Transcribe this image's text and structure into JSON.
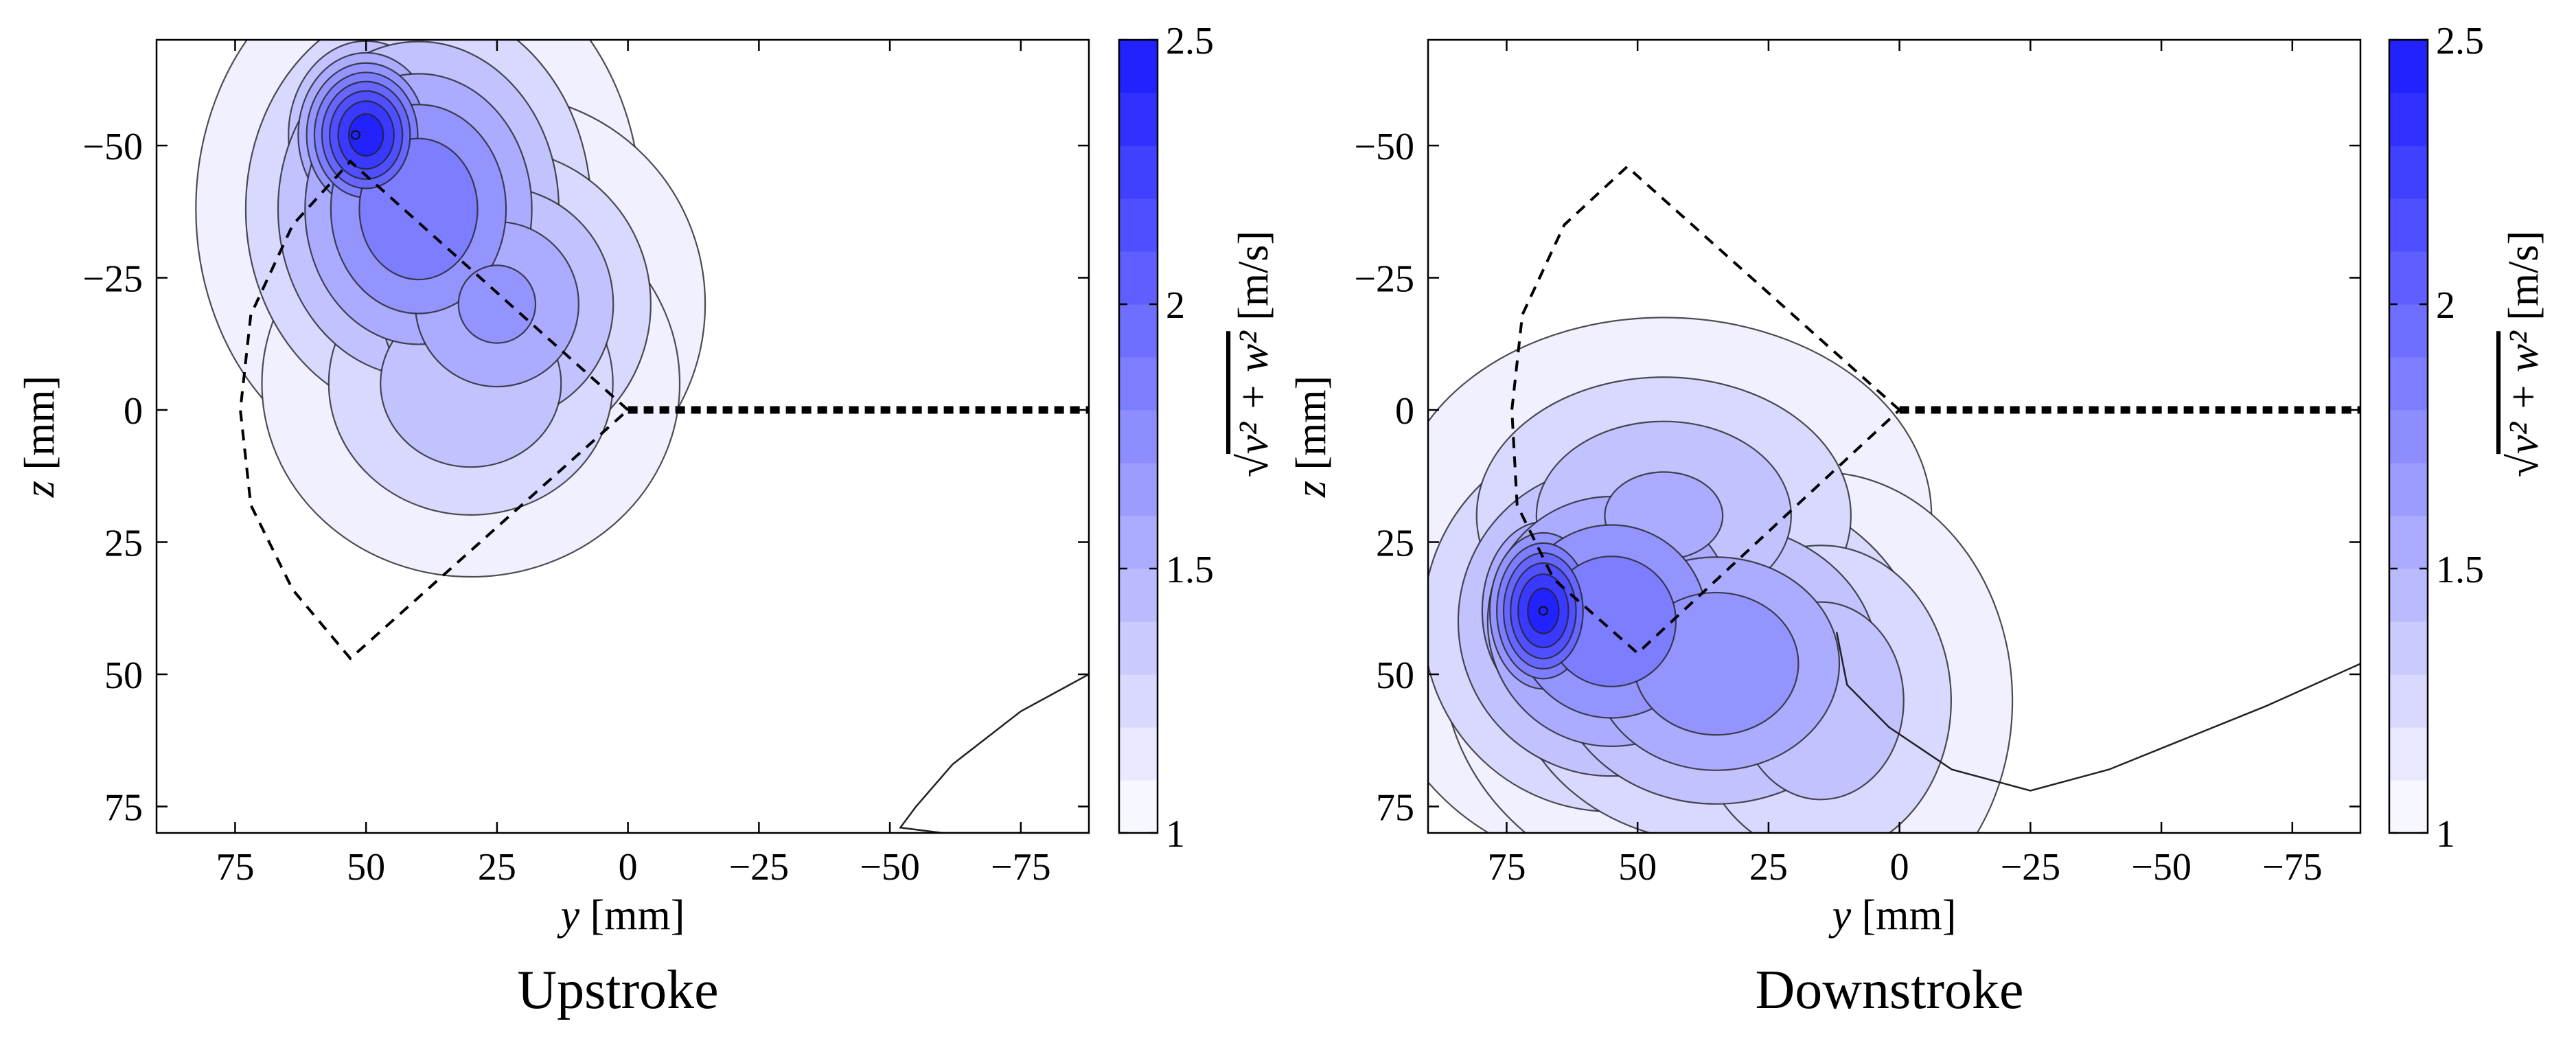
{
  "figure": {
    "colormap_low": "#ffffff",
    "colormap_high": "#1a1aff"
  },
  "chart_data": [
    {
      "type": "heatmap",
      "title": "",
      "caption": "Upstroke",
      "xlabel_var": "y",
      "xlabel_unit": " [mm]",
      "ylabel_var": "z",
      "ylabel_unit": " [mm]",
      "xlim": [
        90,
        -88
      ],
      "ylim": [
        -70,
        80
      ],
      "xticks": [
        75,
        50,
        25,
        0,
        -25,
        -50,
        -75
      ],
      "xtick_labels": [
        "75",
        "50",
        "25",
        "0",
        "−25",
        "−50",
        "−75"
      ],
      "yticks": [
        -50,
        -25,
        0,
        25,
        50,
        75
      ],
      "ytick_labels": [
        "−50",
        "−25",
        "0",
        "25",
        "50",
        "75"
      ],
      "colorbar": {
        "label_prefix": "√",
        "label_expr": "v² + w²",
        "label_unit": " [m/s]",
        "range": [
          1,
          2.5
        ],
        "ticks": [
          1,
          1.5,
          2,
          2.5
        ],
        "tick_labels": [
          "1",
          "1.5",
          "2",
          "2.5"
        ],
        "levels": 15
      },
      "levels": [
        1.1,
        1.25,
        1.4,
        1.55,
        1.7,
        1.85,
        2.0,
        2.15,
        2.3,
        2.45
      ],
      "peak": {
        "y": 52,
        "z": -52,
        "value": 2.5
      },
      "wing_outline": {
        "arc_points": [
          [
            53,
            -47
          ],
          [
            64,
            -35
          ],
          [
            72,
            -18
          ],
          [
            74,
            0
          ],
          [
            72,
            18
          ],
          [
            64,
            34
          ],
          [
            53,
            47
          ]
        ],
        "root": [
          0,
          0
        ]
      },
      "wing_trail": {
        "from_y": 0,
        "to_y": -88,
        "z": 0
      },
      "isolated_contour": [
        [
          -88,
          50
        ],
        [
          -75,
          57
        ],
        [
          -62,
          67
        ],
        [
          -55,
          75
        ],
        [
          -52,
          79
        ],
        [
          -60,
          80
        ],
        [
          -75,
          80
        ],
        [
          -88,
          80
        ]
      ]
    },
    {
      "type": "heatmap",
      "title": "",
      "caption": "Downstroke",
      "xlabel_var": "y",
      "xlabel_unit": " [mm]",
      "ylabel_var": "z",
      "ylabel_unit": " [mm]",
      "xlim": [
        90,
        -88
      ],
      "ylim": [
        -70,
        80
      ],
      "xticks": [
        75,
        50,
        25,
        0,
        -25,
        -50,
        -75
      ],
      "xtick_labels": [
        "75",
        "50",
        "25",
        "0",
        "−25",
        "−50",
        "−75"
      ],
      "yticks": [
        -50,
        -25,
        0,
        25,
        50,
        75
      ],
      "ytick_labels": [
        "−50",
        "−25",
        "0",
        "25",
        "50",
        "75"
      ],
      "colorbar": {
        "label_prefix": "√",
        "label_expr": "v² + w²",
        "label_unit": " [m/s]",
        "range": [
          1,
          2.5
        ],
        "ticks": [
          1,
          1.5,
          2,
          2.5
        ],
        "tick_labels": [
          "1",
          "1.5",
          "2",
          "2.5"
        ],
        "levels": 15
      },
      "levels": [
        1.1,
        1.25,
        1.4,
        1.55,
        1.7,
        1.85,
        2.0,
        2.15,
        2.3,
        2.45
      ],
      "peak": {
        "y": 68,
        "z": 38,
        "value": 2.5
      },
      "wing_outline": {
        "arc_points": [
          [
            52,
            -46
          ],
          [
            64,
            -35
          ],
          [
            72,
            -18
          ],
          [
            74,
            0
          ],
          [
            73,
            18
          ],
          [
            66,
            32
          ],
          [
            50,
            46
          ]
        ],
        "root": [
          0,
          0
        ]
      },
      "wing_trail": {
        "from_y": 0,
        "to_y": -88,
        "z": 0
      },
      "isolated_contour": [
        [
          -88,
          48
        ],
        [
          -70,
          56
        ],
        [
          -55,
          62
        ],
        [
          -40,
          68
        ],
        [
          -25,
          72
        ],
        [
          -10,
          68
        ],
        [
          2,
          60
        ],
        [
          10,
          52
        ],
        [
          12,
          42
        ]
      ]
    }
  ]
}
